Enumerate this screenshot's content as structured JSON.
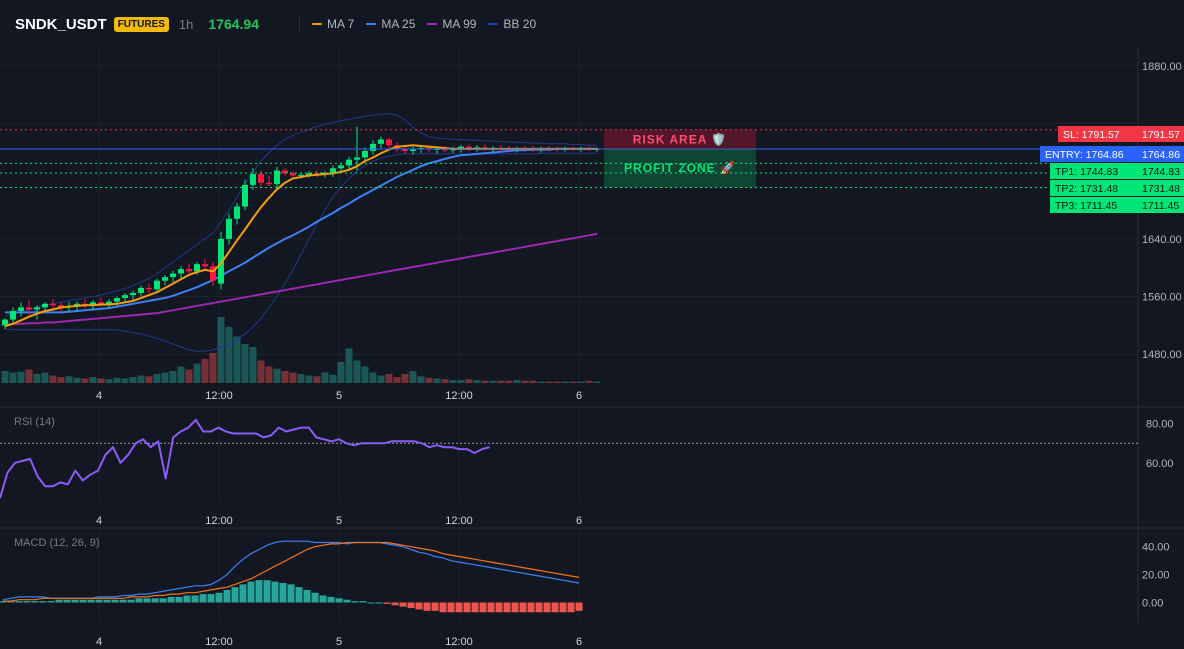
{
  "header": {
    "symbol": "SNDK_USDT",
    "badge": "FUTURES",
    "timeframe": "1h",
    "last_price": "1764.94",
    "price_color": "#22c55e",
    "legend": [
      {
        "label": "MA 7",
        "color": "#f59e0b"
      },
      {
        "label": "MA 25",
        "color": "#3b82f6"
      },
      {
        "label": "MA 99",
        "color": "#9c27b0"
      },
      {
        "label": "BB 20",
        "color": "#1e40af"
      }
    ]
  },
  "chart_data": [
    {
      "type": "candlestick",
      "x_tick_labels": [
        "4",
        "12:00",
        "5",
        "12:00",
        "6"
      ],
      "y_tick_labels": [
        "1880.00",
        "1640.00",
        "1560.00",
        "1480.00"
      ],
      "ylim": [
        1440,
        1905
      ],
      "grid": true,
      "candles": [
        [
          1520,
          1530,
          1515,
          1528
        ],
        [
          1528,
          1545,
          1522,
          1540
        ],
        [
          1540,
          1552,
          1532,
          1545
        ],
        [
          1545,
          1555,
          1535,
          1542
        ],
        [
          1542,
          1548,
          1528,
          1545
        ],
        [
          1545,
          1552,
          1538,
          1550
        ],
        [
          1550,
          1556,
          1542,
          1548
        ],
        [
          1548,
          1553,
          1538,
          1545
        ],
        [
          1545,
          1552,
          1538,
          1547
        ],
        [
          1547,
          1553,
          1540,
          1550
        ],
        [
          1550,
          1556,
          1544,
          1548
        ],
        [
          1548,
          1555,
          1542,
          1552
        ],
        [
          1552,
          1558,
          1546,
          1550
        ],
        [
          1550,
          1556,
          1544,
          1553
        ],
        [
          1553,
          1560,
          1548,
          1558
        ],
        [
          1558,
          1565,
          1552,
          1562
        ],
        [
          1562,
          1568,
          1555,
          1565
        ],
        [
          1565,
          1575,
          1560,
          1572
        ],
        [
          1572,
          1578,
          1565,
          1570
        ],
        [
          1570,
          1585,
          1566,
          1582
        ],
        [
          1582,
          1590,
          1576,
          1587
        ],
        [
          1587,
          1596,
          1580,
          1592
        ],
        [
          1592,
          1602,
          1585,
          1598
        ],
        [
          1598,
          1606,
          1590,
          1595
        ],
        [
          1595,
          1608,
          1590,
          1605
        ],
        [
          1605,
          1612,
          1598,
          1602
        ],
        [
          1602,
          1608,
          1575,
          1582
        ],
        [
          1578,
          1650,
          1570,
          1640
        ],
        [
          1640,
          1675,
          1632,
          1668
        ],
        [
          1668,
          1690,
          1660,
          1685
        ],
        [
          1685,
          1722,
          1680,
          1715
        ],
        [
          1715,
          1738,
          1708,
          1730
        ],
        [
          1730,
          1734,
          1712,
          1718
        ],
        [
          1718,
          1728,
          1713,
          1716
        ],
        [
          1716,
          1740,
          1712,
          1735
        ],
        [
          1735,
          1738,
          1728,
          1731
        ],
        [
          1731,
          1734,
          1726,
          1728
        ],
        [
          1728,
          1732,
          1724,
          1729
        ],
        [
          1729,
          1734,
          1725,
          1731
        ],
        [
          1731,
          1735,
          1726,
          1730
        ],
        [
          1730,
          1734,
          1725,
          1732
        ],
        [
          1732,
          1742,
          1726,
          1738
        ],
        [
          1738,
          1746,
          1732,
          1742
        ],
        [
          1742,
          1754,
          1736,
          1750
        ],
        [
          1750,
          1796,
          1735,
          1753
        ],
        [
          1753,
          1767,
          1748,
          1762
        ],
        [
          1762,
          1777,
          1757,
          1772
        ],
        [
          1772,
          1782,
          1766,
          1778
        ],
        [
          1778,
          1780,
          1766,
          1770
        ],
        [
          1770,
          1774,
          1760,
          1765
        ],
        [
          1765,
          1770,
          1758,
          1762
        ],
        [
          1762,
          1768,
          1757,
          1764
        ],
        [
          1764,
          1769,
          1759,
          1766
        ],
        [
          1766,
          1770,
          1760,
          1764
        ],
        [
          1764,
          1768,
          1758,
          1765
        ],
        [
          1765,
          1769,
          1760,
          1763
        ],
        [
          1763,
          1768,
          1759,
          1765
        ],
        [
          1765,
          1770,
          1760,
          1768
        ],
        [
          1768,
          1771,
          1762,
          1765
        ],
        [
          1765,
          1770,
          1761,
          1767
        ],
        [
          1767,
          1771,
          1762,
          1764
        ],
        [
          1764,
          1769,
          1760,
          1766
        ],
        [
          1766,
          1770,
          1761,
          1765
        ],
        [
          1765,
          1769,
          1761,
          1764
        ],
        [
          1764,
          1768,
          1760,
          1766
        ],
        [
          1766,
          1769,
          1761,
          1765
        ],
        [
          1765,
          1769,
          1761,
          1764
        ],
        [
          1764,
          1768,
          1760,
          1766
        ],
        [
          1766,
          1769,
          1762,
          1765
        ],
        [
          1765,
          1768,
          1761,
          1764
        ],
        [
          1764,
          1768,
          1761,
          1765
        ],
        [
          1765,
          1768,
          1762,
          1764
        ],
        [
          1764,
          1768,
          1761,
          1765
        ],
        [
          1765,
          1768,
          1762,
          1764
        ],
        [
          1764,
          1767,
          1761,
          1765
        ]
      ],
      "ma7": [
        1519,
        1522,
        1527,
        1532,
        1536,
        1540,
        1542,
        1545,
        1546,
        1547,
        1548,
        1548,
        1549,
        1549,
        1550,
        1552,
        1554,
        1558,
        1562,
        1566,
        1572,
        1578,
        1584,
        1590,
        1594,
        1597,
        1595,
        1606,
        1622,
        1638,
        1653,
        1669,
        1684,
        1697,
        1709,
        1718,
        1724,
        1726,
        1728,
        1729,
        1730,
        1731,
        1733,
        1736,
        1741,
        1748,
        1753,
        1759,
        1764,
        1768,
        1769,
        1770,
        1769,
        1768,
        1767,
        1766,
        1765,
        1765,
        1765,
        1765,
        1765,
        1765,
        1765,
        1765,
        1765,
        1765,
        1765,
        1765,
        1765,
        1765,
        1765,
        1765,
        1765,
        1765,
        1765
      ],
      "ma25": [
        1538,
        1538,
        1538,
        1538,
        1538,
        1538,
        1538,
        1538,
        1539,
        1540,
        1541,
        1542,
        1543,
        1544,
        1546,
        1548,
        1550,
        1552,
        1554,
        1556,
        1558,
        1561,
        1565,
        1569,
        1573,
        1578,
        1583,
        1589,
        1595,
        1601,
        1607,
        1614,
        1621,
        1628,
        1634,
        1640,
        1645,
        1651,
        1657,
        1664,
        1670,
        1676,
        1683,
        1689,
        1696,
        1702,
        1708,
        1714,
        1720,
        1726,
        1731,
        1736,
        1741,
        1745,
        1748,
        1751,
        1754,
        1756,
        1757,
        1758,
        1759,
        1760,
        1761,
        1762,
        1763,
        1763,
        1764,
        1764,
        1764,
        1765,
        1765,
        1765,
        1765,
        1765,
        1765
      ],
      "ma99": [
        1521,
        1522,
        1522,
        1523,
        1523,
        1524,
        1524,
        1525,
        1526,
        1527,
        1528,
        1529,
        1530,
        1531,
        1532,
        1533,
        1534,
        1535,
        1536,
        1537,
        1539,
        1541,
        1543,
        1545,
        1547,
        1549,
        1551,
        1553,
        1555,
        1557,
        1559,
        1561,
        1563,
        1565,
        1567,
        1569,
        1571,
        1573,
        1575,
        1577,
        1579,
        1581,
        1583,
        1585,
        1587,
        1589,
        1591,
        1593,
        1595,
        1597,
        1599,
        1601,
        1603,
        1605,
        1607,
        1609,
        1611,
        1613,
        1615,
        1617,
        1619,
        1621,
        1623,
        1625,
        1627,
        1629,
        1631,
        1633,
        1635,
        1637,
        1639,
        1641,
        1643,
        1645,
        1647
      ],
      "bb_upper": [
        1533,
        1536,
        1539,
        1542,
        1545,
        1548,
        1550,
        1552,
        1554,
        1556,
        1558,
        1560,
        1562,
        1565,
        1568,
        1571,
        1575,
        1580,
        1585,
        1592,
        1600,
        1608,
        1616,
        1624,
        1632,
        1640,
        1648,
        1664,
        1680,
        1698,
        1716,
        1733,
        1748,
        1760,
        1770,
        1778,
        1784,
        1788,
        1792,
        1796,
        1799,
        1802,
        1804,
        1806,
        1808,
        1810,
        1812,
        1813,
        1814,
        1812,
        1805,
        1795,
        1787,
        1782,
        1780,
        1779,
        1778,
        1778,
        1777,
        1777,
        1776,
        1776,
        1775,
        1775,
        1774,
        1774,
        1773,
        1773,
        1772,
        1772,
        1772,
        1771,
        1771,
        1770,
        1770
      ],
      "bb_lower": [
        1515,
        1514,
        1514,
        1514,
        1514,
        1514,
        1514,
        1514,
        1514,
        1514,
        1514,
        1514,
        1514,
        1514,
        1514,
        1512,
        1510,
        1508,
        1505,
        1502,
        1498,
        1494,
        1490,
        1486,
        1484,
        1484,
        1486,
        1490,
        1494,
        1500,
        1508,
        1518,
        1530,
        1545,
        1560,
        1578,
        1598,
        1618,
        1640,
        1660,
        1680,
        1698,
        1712,
        1724,
        1734,
        1742,
        1748,
        1752,
        1755,
        1757,
        1758,
        1758,
        1758,
        1758,
        1758,
        1758,
        1758,
        1758,
        1758,
        1758,
        1758,
        1758,
        1758,
        1758,
        1758,
        1758,
        1758,
        1759,
        1759,
        1759,
        1759,
        1759,
        1759,
        1759,
        1759
      ],
      "volume": [
        16,
        14,
        15,
        18,
        12,
        14,
        10,
        8,
        9,
        7,
        6,
        8,
        6,
        5,
        7,
        6,
        8,
        10,
        9,
        12,
        14,
        16,
        22,
        18,
        26,
        32,
        40,
        88,
        75,
        62,
        52,
        48,
        30,
        22,
        19,
        16,
        14,
        12,
        10,
        9,
        14,
        11,
        28,
        46,
        30,
        22,
        14,
        10,
        12,
        8,
        12,
        16,
        9,
        7,
        6,
        5,
        4,
        4,
        5,
        4,
        3,
        3,
        3,
        3,
        4,
        3,
        3,
        2,
        2,
        2,
        2,
        2,
        2,
        3,
        2
      ],
      "levels": [
        {
          "name": "SL",
          "label": "SL: 1791.57",
          "value": "1791.57",
          "price": 1791.57,
          "color": "#f23645"
        },
        {
          "name": "ENTRY",
          "label": "ENTRY: 1764.86",
          "value": "1764.86",
          "price": 1764.86,
          "color": "#2962ff"
        },
        {
          "name": "TP1",
          "label": "TP1: 1744.83",
          "value": "1744.83",
          "price": 1744.83,
          "color": "#00e676"
        },
        {
          "name": "TP2",
          "label": "TP2: 1731.48",
          "value": "1731.48",
          "price": 1731.48,
          "color": "#00e676"
        },
        {
          "name": "TP3",
          "label": "TP3: 1711.45",
          "value": "1711.45",
          "price": 1711.45,
          "color": "#00e676"
        }
      ],
      "zones": {
        "risk": "RISK AREA 🛡️",
        "profit": "PROFIT ZONE 🚀"
      }
    },
    {
      "type": "line",
      "title": "RSI (14)",
      "y_tick_labels": [
        "80.00",
        "60.00"
      ],
      "ylim": [
        40,
        88
      ],
      "reference_line": 70,
      "values": [
        42,
        55,
        60,
        61,
        62,
        53,
        48,
        48,
        50,
        49,
        56,
        51,
        54,
        56,
        64,
        68,
        60,
        64,
        70,
        72,
        68,
        71,
        52,
        73,
        76,
        78,
        82,
        76,
        76,
        78,
        76,
        75,
        75,
        75,
        75,
        73,
        74,
        78,
        76,
        77,
        78,
        78,
        73,
        72,
        71,
        72,
        70,
        69,
        70,
        70,
        70,
        70,
        71,
        71,
        71,
        71,
        70,
        68,
        69,
        68,
        68,
        67,
        67,
        65,
        67,
        68
      ]
    },
    {
      "type": "bar+line",
      "title": "MACD (12, 26, 9)",
      "y_tick_labels": [
        "40.00",
        "20.00",
        "0.00"
      ],
      "ylim": [
        -14,
        52
      ],
      "histogram": [
        1,
        1,
        1,
        1,
        1,
        1,
        1,
        2,
        2,
        2,
        2,
        2,
        2,
        2,
        2,
        2,
        2,
        3,
        3,
        3,
        3,
        4,
        4,
        5,
        5,
        6,
        6,
        7,
        9,
        11,
        13,
        15,
        16,
        16,
        15,
        14,
        13,
        11,
        9,
        7,
        5,
        4,
        3,
        2,
        1,
        1,
        0,
        0,
        -1,
        -2,
        -3,
        -4,
        -5,
        -6,
        -6,
        -7,
        -7,
        -7,
        -7,
        -7,
        -7,
        -7,
        -7,
        -7,
        -7,
        -7,
        -7,
        -7,
        -7,
        -7,
        -7,
        -7,
        -6
      ],
      "macd": [
        2,
        3,
        4,
        4,
        4,
        4,
        3,
        3,
        3,
        3,
        3,
        3,
        4,
        4,
        4,
        5,
        5,
        6,
        6,
        7,
        8,
        9,
        10,
        11,
        12,
        12,
        13,
        16,
        20,
        26,
        31,
        35,
        38,
        41,
        43,
        44,
        44,
        44,
        44,
        43,
        43,
        43,
        43,
        42,
        43,
        43,
        43,
        43,
        42,
        41,
        40,
        38,
        36,
        35,
        33,
        32,
        30,
        29,
        28,
        27,
        26,
        25,
        24,
        23,
        22,
        21,
        20,
        19,
        18,
        17,
        16,
        15,
        14
      ],
      "signal": [
        1,
        1,
        2,
        2,
        2,
        3,
        3,
        3,
        3,
        3,
        3,
        3,
        3,
        3,
        3,
        3,
        4,
        4,
        4,
        5,
        5,
        6,
        6,
        7,
        7,
        8,
        9,
        10,
        11,
        13,
        15,
        17,
        20,
        23,
        26,
        29,
        32,
        35,
        38,
        40,
        41,
        42,
        42,
        43,
        43,
        43,
        43,
        43,
        43,
        42,
        41,
        40,
        39,
        38,
        37,
        35,
        34,
        33,
        32,
        31,
        30,
        29,
        28,
        27,
        26,
        25,
        24,
        23,
        22,
        21,
        20,
        19,
        18
      ]
    }
  ]
}
